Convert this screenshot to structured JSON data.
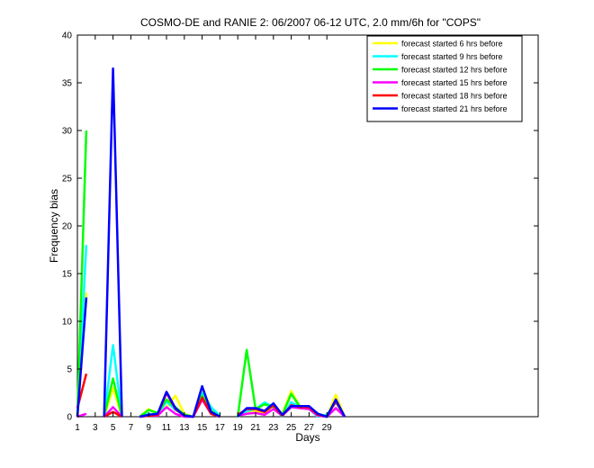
{
  "chart_data": {
    "type": "line",
    "title": "COSMO-DE and RANIE 2: 06/2007 06-12 UTC, 2.0 mm/6h for \"COPS\"",
    "xlabel": "Days",
    "ylabel": "Frequency bias",
    "xlim": [
      1,
      30
    ],
    "ylim": [
      0,
      40
    ],
    "xticks": [
      1,
      3,
      5,
      7,
      9,
      11,
      13,
      15,
      17,
      19,
      21,
      23,
      25,
      27,
      29
    ],
    "yticks": [
      0,
      5,
      10,
      15,
      20,
      25,
      30,
      35,
      40
    ],
    "x_tick_labels": [
      "1",
      "3",
      "5",
      "7",
      "9",
      "11",
      "13",
      "15",
      "17",
      "19",
      "21",
      "23",
      "25",
      "27",
      "29"
    ],
    "y_tick_labels": [
      "0",
      "5",
      "10",
      "15",
      "20",
      "25",
      "30",
      "35",
      "40"
    ],
    "grid": false,
    "legend_position": "top-right",
    "series": [
      {
        "name": "forecast started 6 hrs before",
        "color": "#ffff00",
        "points": [
          [
            1,
            0
          ],
          [
            2,
            13
          ],
          null,
          [
            4,
            0
          ],
          [
            5,
            3
          ],
          [
            6,
            0
          ],
          null,
          [
            8,
            0
          ],
          [
            9,
            0.8
          ],
          [
            10,
            0.3
          ],
          [
            11,
            1
          ],
          [
            12,
            2.2
          ],
          [
            13,
            0.3
          ],
          [
            14,
            0
          ],
          [
            15,
            2.8
          ],
          [
            16,
            1
          ],
          [
            17,
            0
          ],
          null,
          [
            19,
            0
          ],
          [
            20,
            0.5
          ],
          [
            21,
            0.6
          ],
          [
            22,
            0.4
          ],
          [
            23,
            1.2
          ],
          [
            24,
            0.3
          ],
          [
            25,
            2.7
          ],
          [
            26,
            1
          ],
          [
            27,
            1.1
          ],
          [
            28,
            0.2
          ],
          [
            29,
            0
          ],
          [
            30,
            2.3
          ],
          [
            31,
            0
          ]
        ]
      },
      {
        "name": "forecast started 9 hrs before",
        "color": "#00ffff",
        "points": [
          [
            1,
            0
          ],
          [
            2,
            18
          ],
          null,
          [
            4,
            0
          ],
          [
            5,
            7.5
          ],
          [
            6,
            0
          ],
          null,
          [
            8,
            0
          ],
          [
            9,
            0.3
          ],
          [
            10,
            0.2
          ],
          [
            11,
            1.6
          ],
          [
            12,
            0.7
          ],
          [
            13,
            0.2
          ],
          [
            14,
            0
          ],
          [
            15,
            2.5
          ],
          [
            16,
            1
          ],
          [
            17,
            0.1
          ],
          null,
          [
            19,
            0
          ],
          [
            20,
            0.6
          ],
          [
            21,
            0.8
          ],
          [
            22,
            1.5
          ],
          [
            23,
            1
          ],
          [
            24,
            0
          ],
          [
            25,
            1.5
          ],
          [
            26,
            1
          ],
          [
            27,
            0.8
          ],
          [
            28,
            0
          ],
          [
            29,
            0.2
          ],
          [
            30,
            1.5
          ],
          [
            31,
            0
          ]
        ]
      },
      {
        "name": "forecast started 12 hrs before",
        "color": "#00ff00",
        "points": [
          [
            1,
            0
          ],
          [
            2,
            30
          ],
          null,
          [
            4,
            0
          ],
          [
            5,
            4
          ],
          [
            6,
            0
          ],
          null,
          [
            8,
            0
          ],
          [
            9,
            0.7
          ],
          [
            10,
            0.4
          ],
          [
            11,
            1.8
          ],
          [
            12,
            1
          ],
          [
            13,
            0.2
          ],
          [
            14,
            0
          ],
          [
            15,
            2.2
          ],
          [
            16,
            0.6
          ],
          [
            17,
            0
          ],
          null,
          [
            19,
            0
          ],
          [
            20,
            7
          ],
          [
            21,
            0.8
          ],
          [
            22,
            1.3
          ],
          [
            23,
            1
          ],
          [
            24,
            0.2
          ],
          [
            25,
            2.4
          ],
          [
            26,
            1
          ],
          [
            27,
            1
          ],
          [
            28,
            0.3
          ],
          [
            29,
            0
          ],
          [
            30,
            1.7
          ],
          [
            31,
            0
          ]
        ]
      },
      {
        "name": "forecast started 15 hrs before",
        "color": "#ff00ff",
        "points": [
          [
            1,
            0
          ],
          [
            2,
            0.3
          ],
          null,
          [
            4,
            0
          ],
          [
            5,
            1
          ],
          [
            6,
            0
          ],
          null,
          [
            8,
            0
          ],
          [
            9,
            0.1
          ],
          [
            10,
            0.1
          ],
          [
            11,
            1
          ],
          [
            12,
            0.3
          ],
          [
            13,
            0
          ],
          [
            14,
            0
          ],
          [
            15,
            1.8
          ],
          [
            16,
            0.3
          ],
          [
            17,
            0
          ],
          null,
          [
            19,
            0.1
          ],
          [
            20,
            0.3
          ],
          [
            21,
            0.4
          ],
          [
            22,
            0.2
          ],
          [
            23,
            0.8
          ],
          [
            24,
            0.1
          ],
          [
            25,
            1
          ],
          [
            26,
            0.9
          ],
          [
            27,
            0.8
          ],
          [
            28,
            0.1
          ],
          [
            29,
            0
          ],
          [
            30,
            0.9
          ],
          [
            31,
            0
          ]
        ]
      },
      {
        "name": "forecast started 18 hrs before",
        "color": "#ff0000",
        "points": [
          [
            1,
            0.9
          ],
          [
            2,
            4.5
          ],
          null,
          [
            4,
            0
          ],
          [
            5,
            0.5
          ],
          [
            6,
            0
          ],
          null,
          [
            8,
            0
          ],
          [
            9,
            0.1
          ],
          [
            10,
            0.2
          ],
          [
            11,
            2.5
          ],
          [
            12,
            0.8
          ],
          [
            13,
            0.1
          ],
          [
            14,
            0
          ],
          [
            15,
            2
          ],
          [
            16,
            0.3
          ],
          [
            17,
            0
          ],
          null,
          [
            19,
            0.2
          ],
          [
            20,
            0.8
          ],
          [
            21,
            0.8
          ],
          [
            22,
            0.5
          ],
          [
            23,
            1.2
          ],
          [
            24,
            0.1
          ],
          [
            25,
            1.2
          ],
          [
            26,
            1
          ],
          [
            27,
            1
          ],
          [
            28,
            0.2
          ],
          [
            29,
            0
          ],
          [
            30,
            1.6
          ],
          [
            31,
            0
          ]
        ]
      },
      {
        "name": "forecast started 21 hrs before",
        "color": "#0000ff",
        "points": [
          [
            1,
            0
          ],
          [
            2,
            12.5
          ],
          null,
          [
            4,
            0
          ],
          [
            5,
            36.5
          ],
          [
            6,
            0
          ],
          null,
          [
            8,
            0
          ],
          [
            9,
            0.2
          ],
          [
            10,
            0.3
          ],
          [
            11,
            2.6
          ],
          [
            12,
            0.9
          ],
          [
            13,
            0.1
          ],
          [
            14,
            0
          ],
          [
            15,
            3.2
          ],
          [
            16,
            0.5
          ],
          [
            17,
            0
          ],
          null,
          [
            19,
            0
          ],
          [
            20,
            0.9
          ],
          [
            21,
            0.9
          ],
          [
            22,
            0.6
          ],
          [
            23,
            1.4
          ],
          [
            24,
            0.2
          ],
          [
            25,
            1.1
          ],
          [
            26,
            1.1
          ],
          [
            27,
            1.1
          ],
          [
            28,
            0.3
          ],
          [
            29,
            0
          ],
          [
            30,
            1.8
          ],
          [
            31,
            0
          ]
        ]
      }
    ]
  }
}
